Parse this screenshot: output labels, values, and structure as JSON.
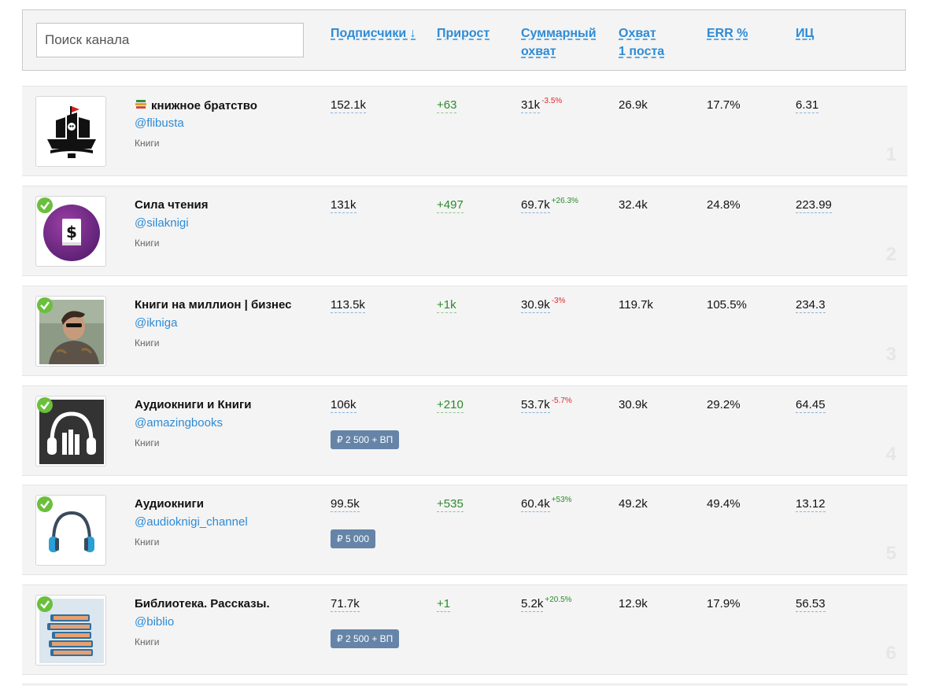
{
  "header": {
    "search_placeholder": "Поиск канала",
    "columns": {
      "subscribers": "Подписчики ↓",
      "growth": "Прирост",
      "total_reach_1": "Суммарный",
      "total_reach_2": "охват",
      "post_reach_1": "Охват",
      "post_reach_2": "1 поста",
      "err": "ERR %",
      "ic": "ИЦ"
    }
  },
  "colors": {
    "link": "#2d8bd6",
    "green": "#2a8a2a",
    "red": "#e0282e",
    "badge": "#6584a8"
  },
  "rows": [
    {
      "rank": "1",
      "title": "книжное братство",
      "handle": "@flibusta",
      "category": "Книги",
      "subscribers": "152.1k",
      "growth": "+63",
      "reach": "31k",
      "reach_change": "-3.5%",
      "post_reach": "26.9k",
      "err": "17.7%",
      "ic": "6.31",
      "avatar_icon": "pirate-ship-icon"
    },
    {
      "rank": "2",
      "title": "Сила чтения",
      "handle": "@silaknigi",
      "category": "Книги",
      "subscribers": "131k",
      "growth": "+497",
      "reach": "69.7k",
      "reach_change": "+26.3%",
      "post_reach": "32.4k",
      "err": "24.8%",
      "ic": "223.99",
      "avatar_icon": "dollar-book-icon"
    },
    {
      "rank": "3",
      "title": "Книги на миллион | бизнес",
      "handle": "@ikniga",
      "category": "Книги",
      "subscribers": "113.5k",
      "growth": "+1k",
      "reach": "30.9k",
      "reach_change": "-3%",
      "post_reach": "119.7k",
      "err": "105.5%",
      "ic": "234.3",
      "avatar_icon": "person-photo-icon"
    },
    {
      "rank": "4",
      "title": "Аудиокниги и Книги",
      "handle": "@amazingbooks",
      "category": "Книги",
      "subscribers": "106k",
      "growth": "+210",
      "reach": "53.7k",
      "reach_change": "-5.7%",
      "post_reach": "30.9k",
      "err": "29.2%",
      "ic": "64.45",
      "price": "₽  2 500 + ВП",
      "avatar_icon": "headphones-books-icon"
    },
    {
      "rank": "5",
      "title": "Аудиокниги",
      "handle": "@audioknigi_channel",
      "category": "Книги",
      "subscribers": "99.5k",
      "growth": "+535",
      "reach": "60.4k",
      "reach_change": "+53%",
      "post_reach": "49.2k",
      "err": "49.4%",
      "ic": "13.12",
      "price": "₽  5 000",
      "avatar_icon": "headphones-icon"
    },
    {
      "rank": "6",
      "title": "Библиотека. Рассказы.",
      "handle": "@biblio",
      "category": "Книги",
      "subscribers": "71.7k",
      "growth": "+1",
      "reach": "5.2k",
      "reach_change": "+20.5%",
      "post_reach": "12.9k",
      "err": "17.9%",
      "ic": "56.53",
      "price": "₽  2 500 + ВП",
      "avatar_icon": "book-stack-icon"
    }
  ]
}
